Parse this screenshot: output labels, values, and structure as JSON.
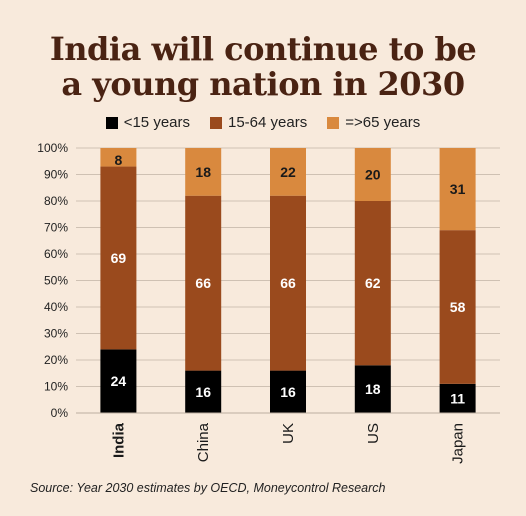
{
  "title_line1": "India will continue to be",
  "title_line2": "a young nation in 2030",
  "legend": [
    {
      "label": "<15 years",
      "color": "#000000"
    },
    {
      "label": "15-64 years",
      "color": "#9a4a1d"
    },
    {
      "label": "=>65 years",
      "color": "#d9893e"
    }
  ],
  "source": "Source: Year 2030 estimates by OECD, Moneycontrol Research",
  "chart_data": {
    "type": "bar",
    "stacked": true,
    "categories": [
      "India",
      "China",
      "UK",
      "US",
      "Japan"
    ],
    "highlight_category": "India",
    "series": [
      {
        "name": "<15 years",
        "color": "#000000",
        "values": [
          24,
          16,
          16,
          18,
          11
        ]
      },
      {
        "name": "15-64 years",
        "color": "#9a4a1d",
        "values": [
          69,
          66,
          66,
          62,
          58
        ]
      },
      {
        "name": "=>65 years",
        "color": "#d9893e",
        "values": [
          8,
          18,
          22,
          20,
          31
        ]
      }
    ],
    "ylim": [
      0,
      100
    ],
    "yticks": [
      "0%",
      "10%",
      "20%",
      "30%",
      "40%",
      "50%",
      "60%",
      "70%",
      "80%",
      "90%",
      "100%"
    ],
    "legend_position": "top"
  }
}
